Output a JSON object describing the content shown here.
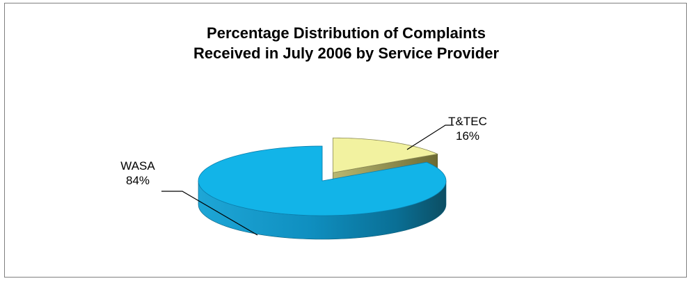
{
  "chart_data": {
    "type": "pie",
    "title": [
      "Percentage Distribution of Complaints",
      "Received in July 2006 by Service Provider"
    ],
    "slices": [
      {
        "label": "WASA",
        "value": 84,
        "value_label": "84%",
        "color": "#12b4e8"
      },
      {
        "label": "T&TEC",
        "value": 16,
        "value_label": "16%",
        "color": "#f2f2a0"
      }
    ],
    "style": "3d-exploded",
    "legend": "none"
  }
}
